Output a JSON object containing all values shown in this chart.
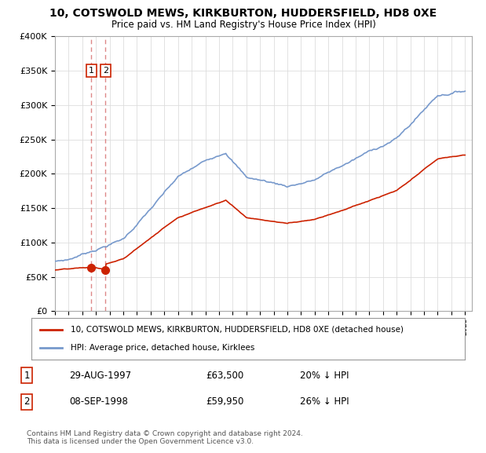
{
  "title": "10, COTSWOLD MEWS, KIRKBURTON, HUDDERSFIELD, HD8 0XE",
  "subtitle": "Price paid vs. HM Land Registry's House Price Index (HPI)",
  "transactions": [
    {
      "num": 1,
      "date": "29-AUG-1997",
      "price": 63500,
      "year": 1997.66,
      "hpi_pct": "20% ↓ HPI"
    },
    {
      "num": 2,
      "date": "08-SEP-1998",
      "price": 59950,
      "year": 1998.69,
      "hpi_pct": "26% ↓ HPI"
    }
  ],
  "legend_line1": "10, COTSWOLD MEWS, KIRKBURTON, HUDDERSFIELD, HD8 0XE (detached house)",
  "legend_line2": "HPI: Average price, detached house, Kirklees",
  "footnote": "Contains HM Land Registry data © Crown copyright and database right 2024.\nThis data is licensed under the Open Government Licence v3.0.",
  "hpi_color": "#7799cc",
  "price_color": "#cc2200",
  "marker_color": "#cc2200",
  "vline_color": "#dd8888",
  "ylim": [
    0,
    400000
  ],
  "xlim_start": 1995.0,
  "xlim_end": 2025.5,
  "background_color": "#ffffff",
  "plot_background": "#ffffff",
  "grid_color": "#dddddd"
}
